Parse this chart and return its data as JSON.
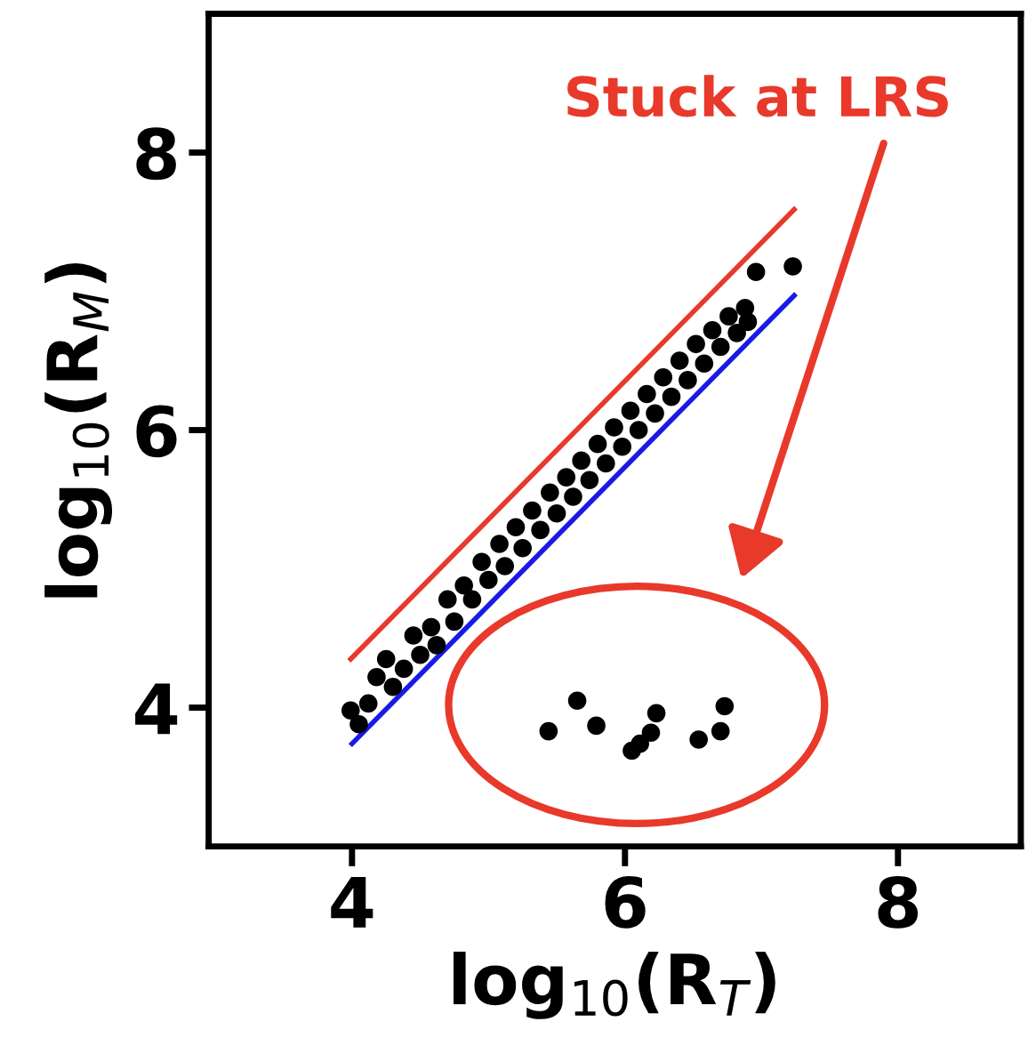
{
  "chart_data": {
    "type": "scatter",
    "xlabel": "log$_{10}$(R$_{T}$)",
    "ylabel": "log$_{10}$(R$_{M}$)",
    "xlim": [
      2.95,
      8.9
    ],
    "ylim": [
      3.0,
      9.0
    ],
    "xticks": [
      4,
      6,
      8
    ],
    "yticks": [
      4,
      6,
      8
    ],
    "grid": false,
    "marker": "circle",
    "series": [
      {
        "color": "#000000",
        "x": [
          3.99,
          4.05,
          4.12,
          4.18,
          4.25,
          4.3,
          4.38,
          4.45,
          4.5,
          4.58,
          4.62,
          4.7,
          4.75,
          4.82,
          4.88,
          4.95,
          5.0,
          5.08,
          5.12,
          5.2,
          5.25,
          5.32,
          5.38,
          5.45,
          5.5,
          5.57,
          5.62,
          5.68,
          5.74,
          5.8,
          5.86,
          5.92,
          5.98,
          6.04,
          6.1,
          6.16,
          6.22,
          6.28,
          6.34,
          6.4,
          6.46,
          6.52,
          6.58,
          6.64,
          6.7,
          6.76,
          6.82,
          6.88,
          6.9,
          6.96,
          7.23
        ],
        "values": [
          3.98,
          3.88,
          4.03,
          4.22,
          4.35,
          4.15,
          4.28,
          4.52,
          4.38,
          4.58,
          4.45,
          4.78,
          4.62,
          4.88,
          4.78,
          5.05,
          4.92,
          5.18,
          5.02,
          5.3,
          5.15,
          5.42,
          5.28,
          5.55,
          5.4,
          5.66,
          5.52,
          5.78,
          5.64,
          5.9,
          5.76,
          6.02,
          5.88,
          6.14,
          6.0,
          6.26,
          6.12,
          6.38,
          6.24,
          6.5,
          6.36,
          6.62,
          6.48,
          6.72,
          6.6,
          6.82,
          6.7,
          6.88,
          6.78,
          7.14,
          7.18
        ]
      },
      {
        "color": "#000000",
        "x": [
          5.44,
          5.65,
          5.79,
          6.05,
          6.11,
          6.19,
          6.23,
          6.54,
          6.7,
          6.73
        ],
        "values": [
          3.83,
          4.05,
          3.87,
          3.69,
          3.74,
          3.82,
          3.96,
          3.77,
          3.83,
          4.01
        ]
      },
      {
        "type": "line",
        "color": "#e8392b",
        "marker": "none",
        "x": [
          3.99,
          7.24
        ],
        "values": [
          4.35,
          7.59
        ]
      },
      {
        "type": "line",
        "color": "#1a1ae6",
        "marker": "none",
        "x": [
          4.0,
          7.24
        ],
        "values": [
          3.74,
          6.97
        ]
      }
    ],
    "annotations": [
      "Stuck at LRS"
    ]
  }
}
